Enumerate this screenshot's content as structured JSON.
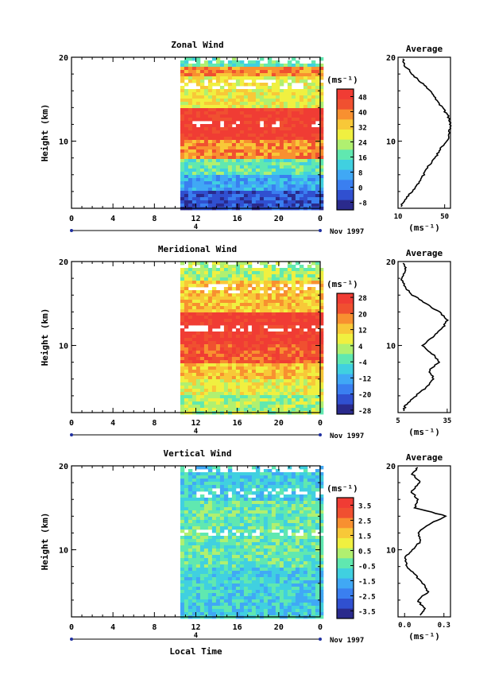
{
  "x_label": "Local Time",
  "y_label": "Height (km)",
  "units_label": "(ms⁻¹)",
  "date_label": "Nov 1997",
  "date_day": "4",
  "time_ticks": [
    "0",
    "4",
    "8",
    "12",
    "16",
    "20",
    "0"
  ],
  "avg_title": "Average",
  "chart_data": [
    {
      "type": "heatmap",
      "title": "Zonal Wind",
      "ylabel": "Height (km)",
      "xlabel": "Local Time",
      "y_ticks": [
        "20",
        "10"
      ],
      "ylim": [
        2,
        20
      ],
      "x_range_hours": [
        0,
        24
      ],
      "data_start_hour": 10.5,
      "colorbar": {
        "ticks": [
          "48",
          "40",
          "32",
          "24",
          "16",
          "8",
          "0",
          "-8"
        ],
        "min": -12,
        "max": 52,
        "colors": [
          "#2a2a8c",
          "#3050d0",
          "#3a7ff0",
          "#40a8f5",
          "#40d0e0",
          "#60e8b0",
          "#b0f070",
          "#f0f040",
          "#f8c838",
          "#f89030",
          "#f05030",
          "#f03c34"
        ]
      },
      "profile_by_height": [
        {
          "h": 3,
          "level": 1
        },
        {
          "h": 5,
          "level": 3
        },
        {
          "h": 7,
          "level": 5
        },
        {
          "h": 9,
          "level": 9
        },
        {
          "h": 11,
          "level": 11
        },
        {
          "h": 13,
          "level": 11
        },
        {
          "h": 15,
          "level": 7
        },
        {
          "h": 17,
          "level": 7
        },
        {
          "h": 18.5,
          "level": 9
        },
        {
          "h": 19.5,
          "level": 5
        }
      ],
      "average": {
        "title": "Average",
        "xlabel": "(ms⁻¹)",
        "x_ticks": [
          "10",
          "50"
        ],
        "xlim": [
          10,
          55
        ],
        "y_ticks": [
          "20",
          "10"
        ],
        "heights": [
          2.2,
          3,
          4,
          5,
          6,
          7,
          8,
          9,
          10,
          11,
          12,
          13,
          14,
          15,
          16,
          17,
          18,
          19,
          19.8
        ],
        "values": [
          12,
          16,
          22,
          28,
          32,
          36,
          42,
          46,
          52,
          54,
          55,
          53,
          48,
          42,
          38,
          30,
          22,
          16,
          14
        ]
      }
    },
    {
      "type": "heatmap",
      "title": "Meridional Wind",
      "ylabel": "Height (km)",
      "xlabel": "Local Time",
      "y_ticks": [
        "20",
        "10"
      ],
      "ylim": [
        2,
        20
      ],
      "x_range_hours": [
        0,
        24
      ],
      "data_start_hour": 10.5,
      "colorbar": {
        "ticks": [
          "28",
          "20",
          "12",
          "4",
          "-4",
          "-12",
          "-20",
          "-28"
        ],
        "min": -30,
        "max": 30,
        "colors": [
          "#2a2a8c",
          "#3050d0",
          "#3a7ff0",
          "#40a8f5",
          "#40d0e0",
          "#60e8b0",
          "#b0f070",
          "#f0f040",
          "#f8c838",
          "#f89030",
          "#f05030",
          "#f03c34"
        ]
      },
      "profile_by_height": [
        {
          "h": 3,
          "level": 6
        },
        {
          "h": 5,
          "level": 7
        },
        {
          "h": 7,
          "level": 8
        },
        {
          "h": 9,
          "level": 10
        },
        {
          "h": 11,
          "level": 11
        },
        {
          "h": 13,
          "level": 11
        },
        {
          "h": 15,
          "level": 8
        },
        {
          "h": 17,
          "level": 8
        },
        {
          "h": 18.5,
          "level": 6
        },
        {
          "h": 19.5,
          "level": 6
        }
      ],
      "average": {
        "title": "Average",
        "xlabel": "(ms⁻¹)",
        "x_ticks": [
          "5",
          "35"
        ],
        "xlim": [
          5,
          37
        ],
        "y_ticks": [
          "20",
          "10"
        ],
        "heights": [
          2.2,
          3,
          4,
          5,
          6,
          7,
          8,
          9,
          10,
          11,
          12,
          13,
          14,
          15,
          16,
          17,
          18,
          19,
          19.8
        ],
        "values": [
          8,
          10,
          16,
          22,
          27,
          24,
          30,
          26,
          20,
          26,
          32,
          35,
          30,
          22,
          14,
          9,
          7,
          10,
          8
        ]
      }
    },
    {
      "type": "heatmap",
      "title": "Vertical Wind",
      "ylabel": "Height (km)",
      "xlabel": "Local Time",
      "y_ticks": [
        "20",
        "10"
      ],
      "ylim": [
        2,
        20
      ],
      "x_range_hours": [
        0,
        24
      ],
      "data_start_hour": 10.5,
      "colorbar": {
        "ticks": [
          "3.5",
          "2.5",
          "1.5",
          "0.5",
          "-0.5",
          "-1.5",
          "-2.5",
          "-3.5"
        ],
        "min": -4,
        "max": 4,
        "colors": [
          "#2a2a8c",
          "#3050d0",
          "#3a7ff0",
          "#40a8f5",
          "#40d0e0",
          "#60e8b0",
          "#b0f070",
          "#f0f040",
          "#f8c838",
          "#f89030",
          "#f05030",
          "#f03c34"
        ]
      },
      "profile_by_height": [
        {
          "h": 3,
          "level": 4
        },
        {
          "h": 5,
          "level": 4
        },
        {
          "h": 7,
          "level": 4
        },
        {
          "h": 9,
          "level": 5
        },
        {
          "h": 11,
          "level": 5
        },
        {
          "h": 13,
          "level": 5
        },
        {
          "h": 15,
          "level": 5
        },
        {
          "h": 17,
          "level": 4
        },
        {
          "h": 18.5,
          "level": 4
        },
        {
          "h": 19.5,
          "level": 4
        }
      ],
      "average": {
        "title": "Average",
        "xlabel": "(ms⁻¹)",
        "x_ticks": [
          "0.0",
          "0.3"
        ],
        "xlim": [
          -0.05,
          0.35
        ],
        "y_ticks": [
          "20",
          "10"
        ],
        "heights": [
          2.2,
          3,
          4,
          5,
          6,
          7,
          8,
          9,
          10,
          11,
          12,
          13,
          14,
          15,
          16,
          17,
          18,
          19,
          19.8
        ],
        "values": [
          0.12,
          0.15,
          0.1,
          0.18,
          0.14,
          0.08,
          0.02,
          0.0,
          0.06,
          0.12,
          0.1,
          0.18,
          0.32,
          0.08,
          0.1,
          0.05,
          0.12,
          0.06,
          0.1
        ]
      }
    }
  ]
}
